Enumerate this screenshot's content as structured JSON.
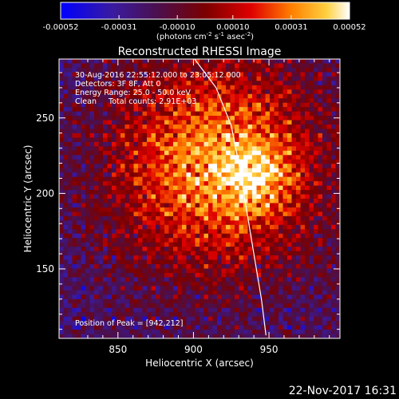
{
  "chart_data": {
    "type": "heatmap",
    "title": "Reconstructed RHESSI Image",
    "xlabel": "Heliocentric X (arcsec)",
    "ylabel": "Heliocentric Y (arcsec)",
    "xlim": [
      811,
      997
    ],
    "ylim": [
      104,
      289
    ],
    "x_ticks": [
      850,
      900,
      950
    ],
    "y_ticks": [
      150,
      200,
      250
    ],
    "colorbar": {
      "ticks": [
        "-0.00052",
        "-0.00031",
        "-0.00010",
        "0.00010",
        "0.00031",
        "0.00052"
      ],
      "range": [
        -0.00052,
        0.00052
      ],
      "unit_prefix": "(photons cm",
      "unit_exp1": "-2",
      "unit_mid1": " s",
      "unit_exp2": "-1",
      "unit_mid2": " asec",
      "unit_exp3": "-2",
      "unit_suffix": ")"
    },
    "annotations": {
      "time_range": "30-Aug-2016 22:55:12.000 to 23:05:12.000",
      "detectors": "Detectors: 3F 8F, Att 0",
      "energy": "Energy Range: 25.0 - 50.0 keV",
      "method": "Clean     Total counts: 2.91E+03",
      "peak": "Position of Peak = [942,212]"
    },
    "peak": [
      942,
      212
    ],
    "limb_points": [
      [
        900,
        290
      ],
      [
        915,
        270
      ],
      [
        925,
        245
      ],
      [
        930,
        220
      ],
      [
        935,
        190
      ],
      [
        940,
        160
      ],
      [
        945,
        130
      ],
      [
        948,
        106
      ]
    ],
    "footer_date": "22-Nov-2017 16:31"
  }
}
